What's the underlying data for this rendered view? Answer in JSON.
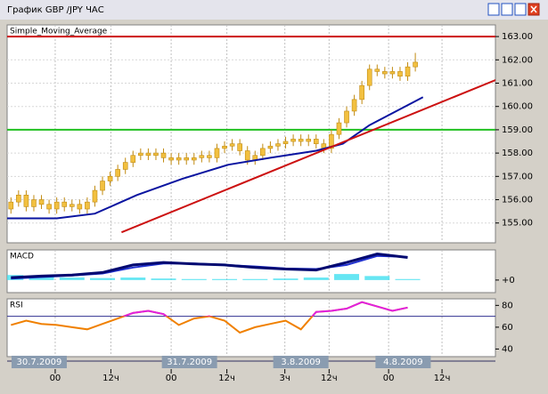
{
  "window": {
    "title": "График GBP /JPY ЧАС"
  },
  "chart_data": [
    {
      "type": "candlestick",
      "title": "Simple_Moving_Average",
      "color": "#f2c040",
      "edge_color": "#c08a10",
      "x": [
        0,
        1,
        2,
        3,
        4,
        5,
        6,
        7,
        8,
        9,
        10,
        11,
        12,
        13,
        14,
        15,
        16,
        17,
        18,
        19,
        20,
        21,
        22,
        23,
        24,
        25,
        26,
        27,
        28,
        29,
        30,
        31,
        32,
        33,
        34,
        35,
        36,
        37,
        38,
        39,
        40,
        41,
        42,
        43,
        44,
        45,
        46,
        47,
        48,
        49,
        50,
        51,
        52,
        53
      ],
      "open": [
        155.6,
        155.9,
        156.2,
        155.7,
        156.0,
        155.8,
        155.6,
        155.9,
        155.7,
        155.8,
        155.6,
        155.9,
        156.4,
        156.8,
        157.0,
        157.3,
        157.6,
        157.9,
        158.0,
        157.9,
        158.0,
        157.8,
        157.7,
        157.8,
        157.7,
        157.8,
        157.9,
        157.8,
        158.2,
        158.3,
        158.4,
        158.1,
        157.7,
        157.9,
        158.2,
        158.3,
        158.4,
        158.5,
        158.6,
        158.5,
        158.6,
        158.4,
        158.2,
        158.8,
        159.3,
        159.8,
        160.3,
        160.9,
        161.6,
        161.5,
        161.4,
        161.5,
        161.3,
        161.7
      ],
      "high": [
        156.1,
        156.4,
        156.4,
        156.2,
        156.2,
        156.0,
        156.1,
        156.1,
        156.0,
        156.0,
        156.1,
        156.6,
        157.0,
        157.2,
        157.5,
        157.8,
        158.1,
        158.2,
        158.2,
        158.2,
        158.2,
        158.0,
        158.0,
        158.0,
        158.0,
        158.1,
        158.1,
        158.4,
        158.5,
        158.6,
        158.6,
        158.3,
        158.1,
        158.4,
        158.5,
        158.6,
        158.7,
        158.8,
        158.8,
        158.8,
        158.8,
        158.6,
        159.0,
        159.5,
        160.0,
        160.5,
        161.1,
        161.8,
        161.8,
        161.7,
        161.7,
        161.7,
        161.9,
        162.3
      ],
      "low": [
        155.4,
        155.7,
        155.5,
        155.5,
        155.6,
        155.4,
        155.4,
        155.5,
        155.5,
        155.4,
        155.4,
        155.7,
        156.2,
        156.6,
        156.8,
        157.1,
        157.4,
        157.7,
        157.7,
        157.7,
        157.6,
        157.5,
        157.5,
        157.5,
        157.5,
        157.6,
        157.6,
        157.6,
        158.0,
        158.1,
        157.9,
        157.5,
        157.5,
        157.7,
        158.0,
        158.1,
        158.2,
        158.3,
        158.3,
        158.3,
        158.2,
        158.0,
        158.0,
        158.6,
        159.1,
        159.6,
        160.1,
        160.7,
        161.3,
        161.2,
        161.2,
        161.1,
        161.1,
        161.5
      ],
      "close": [
        155.9,
        156.2,
        155.7,
        156.0,
        155.8,
        155.6,
        155.9,
        155.7,
        155.8,
        155.6,
        155.9,
        156.4,
        156.8,
        157.0,
        157.3,
        157.6,
        157.9,
        158.0,
        157.9,
        158.0,
        157.8,
        157.7,
        157.8,
        157.7,
        157.8,
        157.9,
        157.8,
        158.2,
        158.3,
        158.4,
        158.1,
        157.7,
        157.9,
        158.2,
        158.3,
        158.4,
        158.5,
        158.6,
        158.5,
        158.6,
        158.4,
        158.2,
        158.8,
        159.3,
        159.8,
        160.3,
        160.9,
        161.6,
        161.5,
        161.4,
        161.5,
        161.3,
        161.7,
        161.9
      ],
      "lines": [
        {
          "color": "#0a14a0",
          "x": [
            -0.5,
            6,
            11,
            16.5,
            22.5,
            28.5,
            34,
            40,
            43.5,
            47,
            50.5,
            54
          ],
          "values": [
            155.2,
            155.2,
            155.4,
            156.2,
            156.9,
            157.5,
            157.8,
            158.1,
            158.4,
            159.2,
            159.8,
            160.4
          ]
        },
        {
          "color": "#cc1010",
          "x": [
            14.5,
            64
          ],
          "values": [
            154.6,
            161.2
          ]
        }
      ],
      "hlines": [
        {
          "value": 163,
          "color": "#cc1010"
        },
        {
          "value": 159,
          "color": "#20c020"
        }
      ],
      "xlim": [
        -0.5,
        63.5
      ],
      "ylim": [
        154.15,
        163.5
      ],
      "yticks": [
        {
          "value": 155,
          "label": "155.00"
        },
        {
          "value": 156,
          "label": "156.00"
        },
        {
          "value": 157,
          "label": "157.00"
        },
        {
          "value": 158,
          "label": "158.00"
        },
        {
          "value": 159,
          "label": "159.00"
        },
        {
          "value": 160,
          "label": "160.00"
        },
        {
          "value": 161,
          "label": "161.00"
        },
        {
          "value": 162,
          "label": "162.00"
        },
        {
          "value": 163,
          "label": "163.00"
        }
      ]
    },
    {
      "type": "line",
      "title": "MACD",
      "x": [
        0,
        4,
        8,
        12,
        16,
        20,
        24,
        28,
        32,
        36,
        40,
        44,
        48,
        52
      ],
      "series": [
        {
          "color": "#40e0f0",
          "style": "histogram",
          "values": [
            0.1,
            0.08,
            0.05,
            0.04,
            0.05,
            0.03,
            0.02,
            0.02,
            0.02,
            0.03,
            0.05,
            0.12,
            0.08,
            0.02
          ]
        },
        {
          "color": "#2030d0",
          "values": [
            0.03,
            0.06,
            0.09,
            0.13,
            0.25,
            0.33,
            0.33,
            0.3,
            0.27,
            0.23,
            0.22,
            0.3,
            0.48,
            0.46
          ]
        },
        {
          "color": "#000870",
          "values": [
            0.05,
            0.08,
            0.1,
            0.15,
            0.3,
            0.35,
            0.32,
            0.3,
            0.25,
            0.22,
            0.2,
            0.35,
            0.52,
            0.45
          ]
        }
      ],
      "xlim": [
        -0.5,
        63.5
      ],
      "ylim": [
        -0.25,
        0.6
      ],
      "yticks": [
        {
          "value": 0,
          "label": "+0"
        }
      ]
    },
    {
      "type": "rsi",
      "title": "RSI",
      "x": [
        0,
        2,
        4,
        6,
        8,
        10,
        12,
        14,
        16,
        18,
        20,
        22,
        24,
        26,
        28,
        30,
        32,
        34,
        36,
        38,
        40,
        42,
        44,
        46,
        48,
        50,
        52
      ],
      "values": [
        62,
        66,
        63,
        62,
        60,
        58,
        63,
        68,
        73,
        75,
        72,
        62,
        68,
        70,
        66,
        55,
        60,
        63,
        66,
        58,
        74,
        75,
        77,
        83,
        79,
        75,
        78
      ],
      "color": "#f08000",
      "above_color": "#e020e0",
      "level": 70,
      "level_color": "#303090",
      "xlim": [
        -0.5,
        63.5
      ],
      "ylim": [
        33,
        86
      ],
      "yticks": [
        80,
        60,
        40
      ]
    }
  ],
  "time_axis": {
    "dates": [
      {
        "value": 3.7,
        "label": "30.7.2009"
      },
      {
        "value": 23.4,
        "label": "31.7.2009"
      },
      {
        "value": 38,
        "label": "3.8.2009"
      },
      {
        "value": 51.4,
        "label": "4.8.2009"
      }
    ],
    "hours": [
      {
        "value": 5.8,
        "label": "00"
      },
      {
        "value": 13.1,
        "label": "12ч"
      },
      {
        "value": 21,
        "label": "00"
      },
      {
        "value": 28.3,
        "label": "12ч"
      },
      {
        "value": 35.9,
        "label": "3ч"
      },
      {
        "value": 41.7,
        "label": "12ч"
      },
      {
        "value": 49.5,
        "label": "00"
      },
      {
        "value": 56.5,
        "label": "12ч"
      }
    ]
  }
}
